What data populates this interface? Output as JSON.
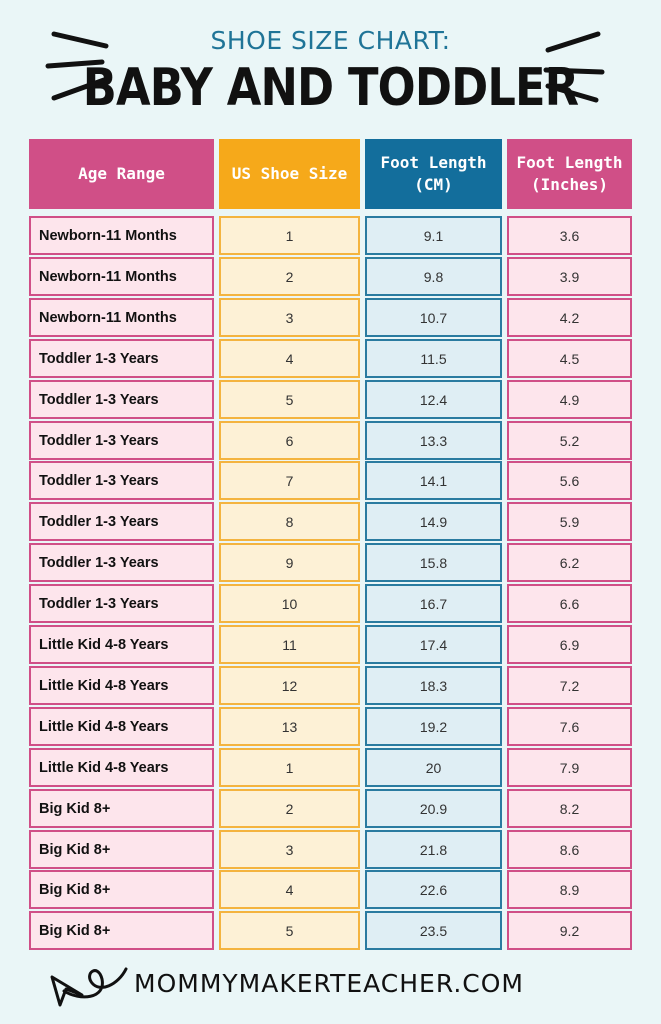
{
  "header": {
    "subtitle": "SHOE SIZE CHART:",
    "title": "BABY AND TODDLER"
  },
  "table": {
    "columns": [
      "Age Range",
      "US Shoe Size",
      "Foot Length\n(CM)",
      "Foot Length\n(Inches)"
    ],
    "rows": [
      [
        "Newborn-11 Months",
        "1",
        "9.1",
        "3.6"
      ],
      [
        "Newborn-11 Months",
        "2",
        "9.8",
        "3.9"
      ],
      [
        "Newborn-11 Months",
        "3",
        "10.7",
        "4.2"
      ],
      [
        "Toddler 1-3 Years",
        "4",
        "11.5",
        "4.5"
      ],
      [
        "Toddler 1-3 Years",
        "5",
        "12.4",
        "4.9"
      ],
      [
        "Toddler 1-3 Years",
        "6",
        "13.3",
        "5.2"
      ],
      [
        "Toddler 1-3 Years",
        "7",
        "14.1",
        "5.6"
      ],
      [
        "Toddler 1-3 Years",
        "8",
        "14.9",
        "5.9"
      ],
      [
        "Toddler 1-3 Years",
        "9",
        "15.8",
        "6.2"
      ],
      [
        "Toddler 1-3 Years",
        "10",
        "16.7",
        "6.6"
      ],
      [
        "Little Kid 4-8 Years",
        "11",
        "17.4",
        "6.9"
      ],
      [
        "Little Kid 4-8 Years",
        "12",
        "18.3",
        "7.2"
      ],
      [
        "Little Kid 4-8 Years",
        "13",
        "19.2",
        "7.6"
      ],
      [
        "Little Kid 4-8 Years",
        "1",
        "20",
        "7.9"
      ],
      [
        "Big Kid 8+",
        "2",
        "20.9",
        "8.2"
      ],
      [
        "Big Kid 8+",
        "3",
        "21.8",
        "8.6"
      ],
      [
        "Big Kid 8+",
        "4",
        "22.6",
        "8.9"
      ],
      [
        "Big Kid 8+",
        "5",
        "23.5",
        "9.2"
      ]
    ]
  },
  "footer": {
    "website": "MOMMYMAKERTEACHER.COM"
  },
  "colors": {
    "background": "#eaf6f7",
    "pink": "#d04f87",
    "orange": "#f6a91a",
    "blue": "#136e9c",
    "subtitle": "#1f7497"
  },
  "icons": [
    "emphasis-lines-left-icon",
    "emphasis-lines-right-icon",
    "curly-arrow-icon"
  ]
}
